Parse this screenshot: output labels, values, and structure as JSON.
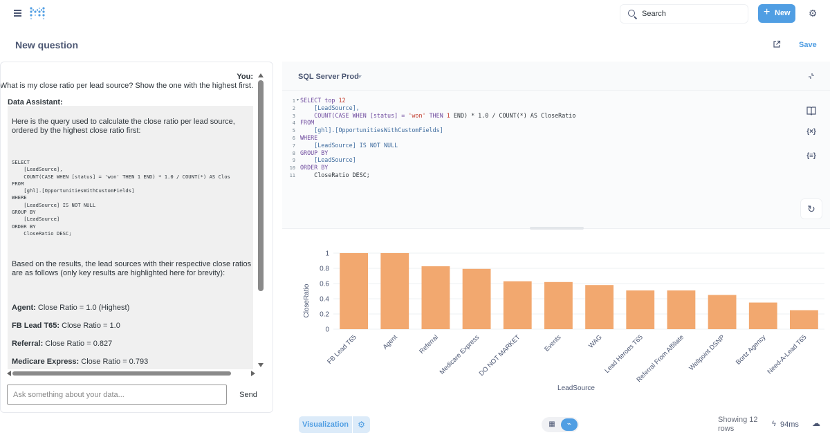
{
  "header": {
    "search_label": "Search",
    "new_label": "New",
    "page_title": "New question",
    "save_label": "Save"
  },
  "chat": {
    "you_label": "You:",
    "you_message": "What is my close ratio per lead source? Show the one with the highest first.",
    "assistant_label": "Data Assistant:",
    "intro_line1": "Here is the query used to calculate the close ratio per lead source,",
    "intro_line2": "ordered by the highest close ratio first:",
    "code": "SELECT\n    [LeadSource],\n    COUNT(CASE WHEN [status] = 'won' THEN 1 END) * 1.0 / COUNT(*) AS Clos\nFROM\n    [ghl].[OpportunitiesWithCustomFields]\nWHERE\n    [LeadSource] IS NOT NULL\nGROUP BY\n    [LeadSource]\nORDER BY\n    CloseRatio DESC;",
    "results_line1": "Based on the results, the lead sources with their respective close ratios",
    "results_line2": "are as follows (only key results are highlighted here for brevity):",
    "results": [
      {
        "name": "Agent:",
        "text": " Close Ratio = 1.0 (Highest)"
      },
      {
        "name": "FB Lead T65:",
        "text": " Close Ratio = 1.0"
      },
      {
        "name": "Referral:",
        "text": " Close Ratio = 0.827"
      },
      {
        "name": "Medicare Express:",
        "text": " Close Ratio = 0.793"
      }
    ],
    "input_placeholder": "Ask something about your data...",
    "send_label": "Send"
  },
  "editor": {
    "database": "SQL Server Prod",
    "line_numbers": "1\n2\n3\n4\n5\n6\n7\n8\n9\n10\n11",
    "lines": [
      [
        {
          "t": "SELECT top ",
          "c": "kw"
        },
        {
          "t": "12",
          "c": "num"
        }
      ],
      [
        {
          "t": "    [LeadSource],",
          "c": "id"
        }
      ],
      [
        {
          "t": "    COUNT(CASE WHEN [status] = ",
          "c": "kw"
        },
        {
          "t": "'won'",
          "c": "str"
        },
        {
          "t": " THEN ",
          "c": "kw"
        },
        {
          "t": "1",
          "c": "num"
        },
        {
          "t": " END) * 1.0 / COUNT(*) AS CloseRatio",
          "c": ""
        }
      ],
      [
        {
          "t": "FROM",
          "c": "kw"
        }
      ],
      [
        {
          "t": "    [ghl].[OpportunitiesWithCustomFields]",
          "c": "id"
        }
      ],
      [
        {
          "t": "WHERE",
          "c": "kw"
        }
      ],
      [
        {
          "t": "    [LeadSource] IS NOT NULL",
          "c": "id"
        }
      ],
      [
        {
          "t": "GROUP BY",
          "c": "kw"
        }
      ],
      [
        {
          "t": "    [LeadSource]",
          "c": "id"
        }
      ],
      [
        {
          "t": "ORDER BY",
          "c": "kw"
        }
      ],
      [
        {
          "t": "    CloseRatio DESC;",
          "c": ""
        }
      ]
    ]
  },
  "chart_data": {
    "type": "bar",
    "categories": [
      "FB Lead T65",
      "Agent",
      "Referral",
      "Medicare Express",
      "DO NOT MARKET",
      "Events",
      "WAG",
      "Lead Heroes T65",
      "Referral From Affiliate",
      "Wellpoint DSNP",
      "Bortz Agency",
      "Need-A-Lead T65"
    ],
    "values": [
      1.0,
      1.0,
      0.827,
      0.793,
      0.63,
      0.62,
      0.58,
      0.51,
      0.51,
      0.45,
      0.35,
      0.25
    ],
    "ticks": [
      "0",
      "0.2",
      "0.4",
      "0.6",
      "0.8",
      "1"
    ],
    "xlabel": "LeadSource",
    "ylabel": "CloseRatio",
    "ylim": [
      0,
      1
    ],
    "bar_color": "#f2a86f",
    "grid": true
  },
  "footer": {
    "visualization_label": "Visualization",
    "showing_label": "Showing 12 rows",
    "timing_label": "94ms"
  },
  "colors": {
    "brand": "#509ee3",
    "text": "#4c5773"
  }
}
